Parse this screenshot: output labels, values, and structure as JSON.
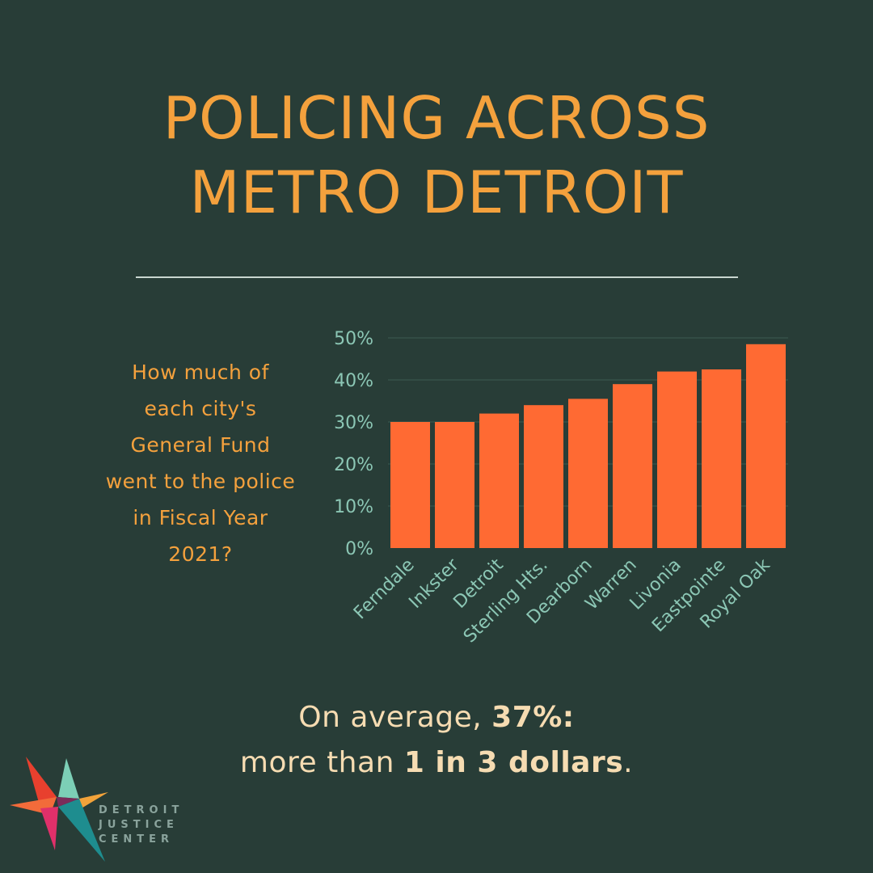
{
  "title": {
    "line1": "POLICING ACROSS",
    "line2": "METRO DETROIT"
  },
  "question": "How much of each city's General Fund went to the police in Fiscal Year 2021?",
  "summary": {
    "line1_prefix": "On average, ",
    "line1_bold": "37%:",
    "line2_prefix": "more than ",
    "line2_bold": "1 in 3 dollars",
    "line2_suffix": "."
  },
  "logo": {
    "line1": "DETROIT",
    "line2": "JUSTICE",
    "line3": "CENTER"
  },
  "colors": {
    "background": "#283d37",
    "bar": "#ff6a33",
    "title": "#f4a13d",
    "tick": "#8cc7b5",
    "summary": "#f6dcb2"
  },
  "chart_data": {
    "type": "bar",
    "title": "",
    "xlabel": "",
    "ylabel": "",
    "categories": [
      "Ferndale",
      "Inkster",
      "Detroit",
      "Sterling Hts.",
      "Dearborn",
      "Warren",
      "Livonia",
      "Eastpointe",
      "Royal Oak"
    ],
    "values": [
      30,
      30,
      32,
      34,
      35.5,
      39,
      42,
      42.5,
      48.5
    ],
    "ylim": [
      0,
      50
    ],
    "yticks": [
      0,
      10,
      20,
      30,
      40,
      50
    ],
    "ytick_labels": [
      "0%",
      "10%",
      "20%",
      "30%",
      "40%",
      "50%"
    ],
    "grid": true
  }
}
